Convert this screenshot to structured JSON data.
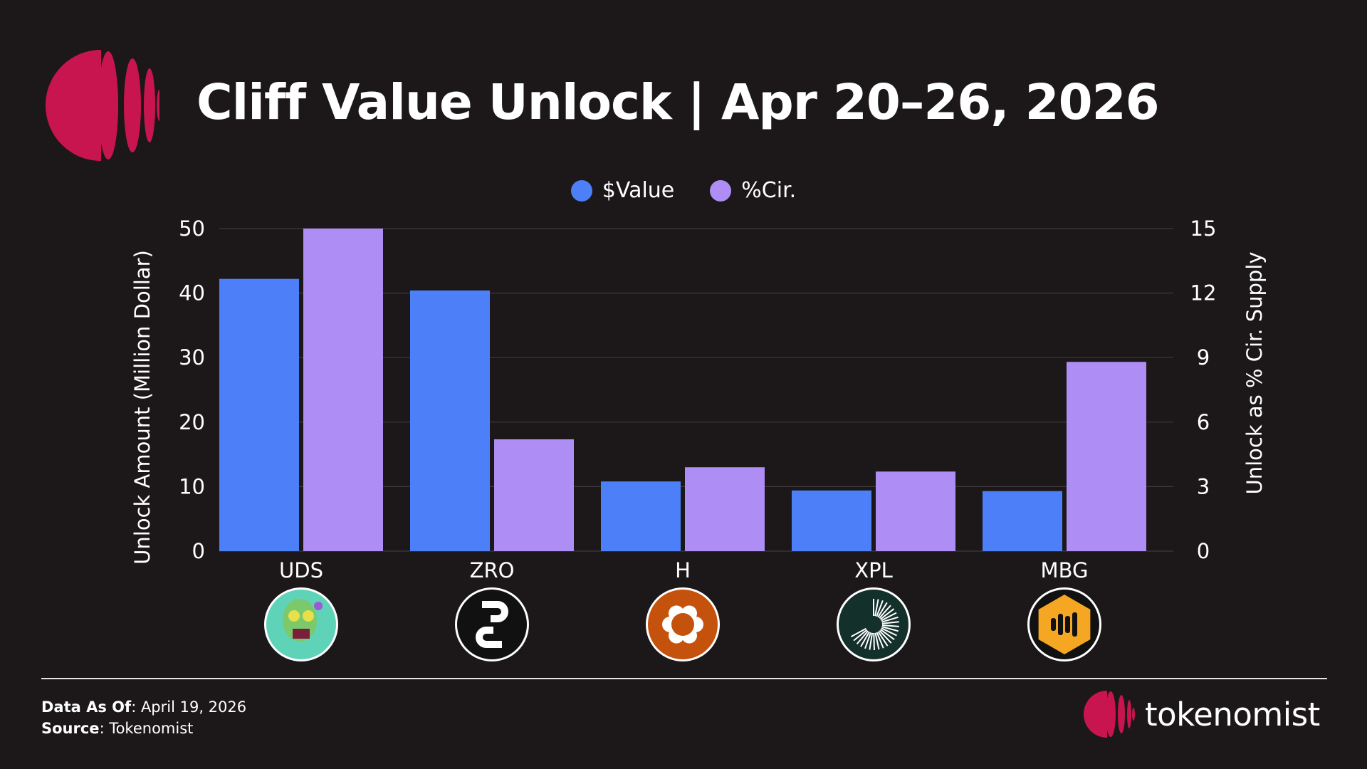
{
  "title": "Cliff Value Unlock | Apr 20–26, 2026",
  "colors": {
    "value": "#4c7ff8",
    "cir": "#ae8ef5",
    "brand": "#c8154f",
    "background": "#1c1819",
    "grid": "#3e3a3b"
  },
  "legend": [
    {
      "label": "$Value",
      "color": "#4c7ff8"
    },
    {
      "label": "%Cir.",
      "color": "#ae8ef5"
    }
  ],
  "chart_data": {
    "type": "bar",
    "categories": [
      "UDS",
      "ZRO",
      "H",
      "XPL",
      "MBG"
    ],
    "series": [
      {
        "name": "$Value",
        "axis": "left",
        "values": [
          42.2,
          40.4,
          10.8,
          9.4,
          9.3
        ]
      },
      {
        "name": "%Cir.",
        "axis": "right",
        "values": [
          15.0,
          5.2,
          3.9,
          3.7,
          8.8
        ]
      }
    ],
    "ylabel": "Unlock Amount (Million Dollar)",
    "y2label": "Unlock as % Cir. Supply",
    "ylim": [
      0,
      50
    ],
    "y2lim": [
      0,
      15
    ],
    "yticks": [
      "0",
      "10",
      "20",
      "30",
      "40",
      "50"
    ],
    "y2ticks": [
      "0",
      "3",
      "6",
      "9",
      "12",
      "15"
    ],
    "grid": true,
    "legend_position": "top-center",
    "token_icons": [
      "zombie-icon",
      "layerzero-icon",
      "humanity-icon",
      "plasma-icon",
      "mbg-icon"
    ]
  },
  "footer": {
    "data_as_of_label": "Data As Of",
    "data_as_of_value": ": April 19, 2026",
    "source_label": "Source",
    "source_value": ": Tokenomist"
  },
  "brand": {
    "name": "tokenomist"
  }
}
